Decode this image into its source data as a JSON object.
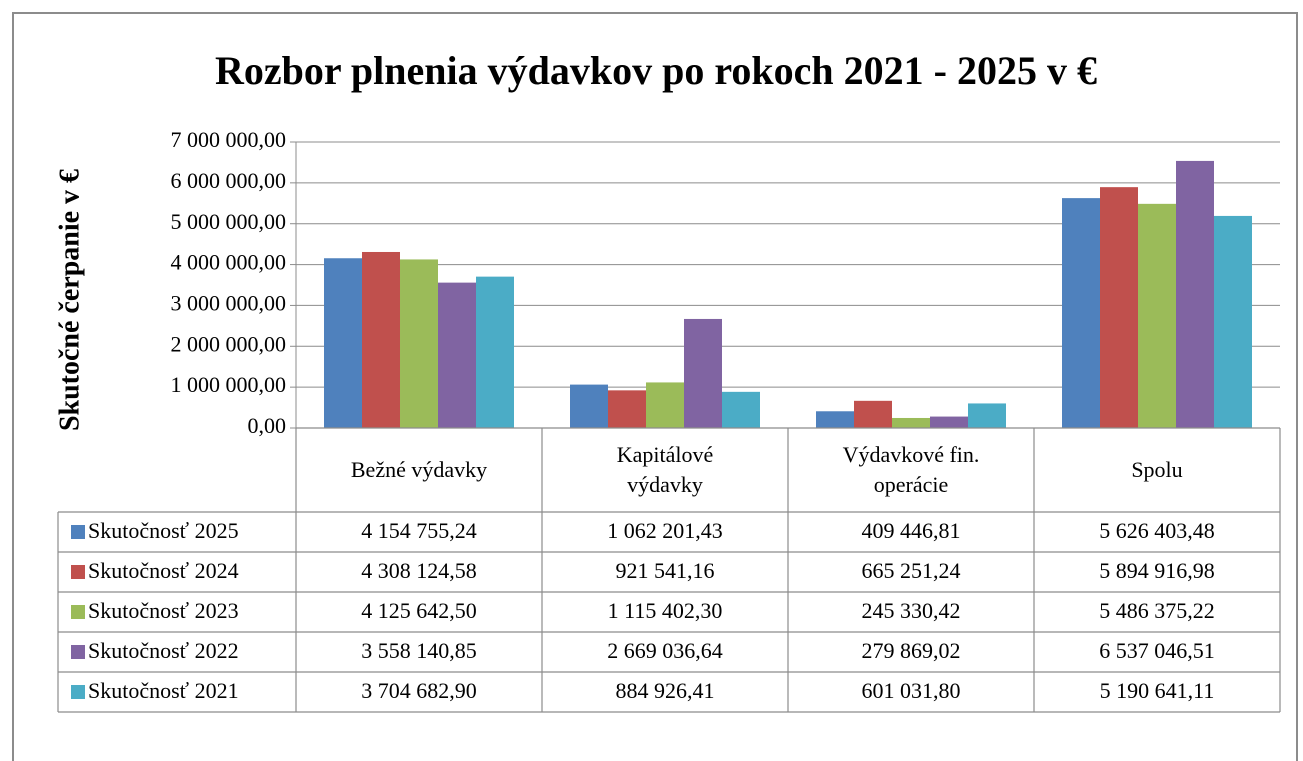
{
  "chart_data": {
    "type": "bar",
    "title": "Rozbor plnenia výdavkov  po rokoch 2021 - 2025 v €",
    "y_label": "Skutočné čerpanie v €",
    "categories": [
      "Bežné výdavky",
      "Kapitálové výdavky",
      "Výdavkové fin. operácie",
      "Spolu"
    ],
    "ylim": [
      0,
      7000000
    ],
    "yticks": [
      {
        "value": 0,
        "label": "0,00"
      },
      {
        "value": 1000000,
        "label": "1 000 000,00"
      },
      {
        "value": 2000000,
        "label": "2 000 000,00"
      },
      {
        "value": 3000000,
        "label": "3 000 000,00"
      },
      {
        "value": 4000000,
        "label": "4 000 000,00"
      },
      {
        "value": 5000000,
        "label": "5 000 000,00"
      },
      {
        "value": 6000000,
        "label": "6 000 000,00"
      },
      {
        "value": 7000000,
        "label": "7 000 000,00"
      }
    ],
    "grid": true,
    "series": [
      {
        "name": "Skutočnosť 2025",
        "color": "#4f81bd",
        "values": [
          4154755.24,
          1062201.43,
          409446.81,
          5626403.48
        ],
        "value_labels": [
          "4 154 755,24",
          "1 062 201,43",
          "409 446,81",
          "5 626 403,48"
        ]
      },
      {
        "name": "Skutočnosť 2024",
        "color": "#c0504d",
        "values": [
          4308124.58,
          921541.16,
          665251.24,
          5894916.98
        ],
        "value_labels": [
          "4 308 124,58",
          "921 541,16",
          "665 251,24",
          "5 894 916,98"
        ]
      },
      {
        "name": "Skutočnosť 2023",
        "color": "#9bbb59",
        "values": [
          4125642.5,
          1115402.3,
          245330.42,
          5486375.22
        ],
        "value_labels": [
          "4 125 642,50",
          "1 115 402,30",
          "245 330,42",
          "5 486 375,22"
        ]
      },
      {
        "name": "Skutočnosť 2022",
        "color": "#8064a2",
        "values": [
          3558140.85,
          2669036.64,
          279869.02,
          6537046.51
        ],
        "value_labels": [
          "3 558 140,85",
          "2 669 036,64",
          "279 869,02",
          "6 537 046,51"
        ]
      },
      {
        "name": "Skutočnosť 2021",
        "color": "#4bacc6",
        "values": [
          3704682.9,
          884926.41,
          601031.8,
          5190641.11
        ],
        "value_labels": [
          "3 704 682,90",
          "884 926,41",
          "601 031,80",
          "5 190 641,11"
        ]
      }
    ]
  }
}
